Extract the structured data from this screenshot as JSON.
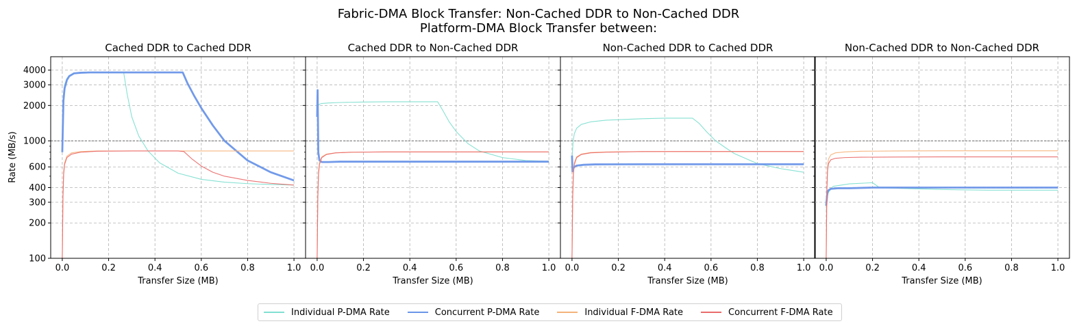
{
  "suptitle": {
    "line1": "Fabric-DMA Block Transfer: Non-Cached DDR to Non-Cached DDR",
    "line2": "Platform-DMA Block Transfer between:"
  },
  "legend": [
    {
      "label": "Individual P-DMA Rate",
      "color": "#7fdfd0"
    },
    {
      "label": "Concurrent P-DMA Rate",
      "color": "#6a95e8"
    },
    {
      "label": "Individual F-DMA Rate",
      "color": "#f5b27a"
    },
    {
      "label": "Concurrent F-DMA Rate",
      "color": "#ea6a6a"
    }
  ],
  "axes": {
    "xlabel": "Transfer Size (MB)",
    "ylabel": "Rate (MB/s)",
    "yscale": "log",
    "xlim": [
      -0.05,
      1.05
    ],
    "ylim": [
      100,
      5200
    ],
    "xticks": [
      0,
      0.2,
      0.4,
      0.6,
      0.8,
      1.0
    ],
    "xtick_labels": [
      "0.0",
      "0.2",
      "0.4",
      "0.6",
      "0.8",
      "1.0"
    ],
    "yticks": [
      100,
      200,
      300,
      400,
      600,
      1000,
      2000,
      3000,
      4000
    ],
    "ytick_labels": [
      "100",
      "200",
      "300",
      "400",
      "600",
      "1000",
      "2000",
      "3000",
      "4000"
    ],
    "reference_line": 1000,
    "grid": true
  },
  "chart_data": [
    {
      "type": "line",
      "title": "Cached DDR to Cached DDR",
      "series": [
        {
          "name": "Individual P-DMA Rate",
          "x": [
            0,
            0.005,
            0.01,
            0.02,
            0.03,
            0.05,
            0.08,
            0.12,
            0.2,
            0.265,
            0.28,
            0.3,
            0.33,
            0.37,
            0.42,
            0.5,
            0.6,
            0.7,
            0.8,
            0.9,
            1.0
          ],
          "y": [
            1300,
            2500,
            3000,
            3400,
            3600,
            3750,
            3800,
            3820,
            3820,
            3820,
            2500,
            1600,
            1100,
            820,
            650,
            530,
            470,
            445,
            432,
            425,
            420
          ]
        },
        {
          "name": "Concurrent P-DMA Rate",
          "x": [
            0,
            0.005,
            0.01,
            0.02,
            0.03,
            0.05,
            0.08,
            0.12,
            0.2,
            0.3,
            0.4,
            0.52,
            0.54,
            0.57,
            0.6,
            0.65,
            0.7,
            0.8,
            0.9,
            1.0
          ],
          "y": [
            800,
            2200,
            2800,
            3300,
            3550,
            3750,
            3800,
            3820,
            3820,
            3820,
            3820,
            3820,
            3100,
            2400,
            1900,
            1350,
            1000,
            680,
            540,
            460
          ]
        },
        {
          "name": "Individual F-DMA Rate",
          "x": [
            0,
            0.003,
            0.006,
            0.01,
            0.02,
            0.04,
            0.08,
            0.15,
            0.3,
            0.5,
            0.7,
            1.0
          ],
          "y": [
            100,
            350,
            550,
            650,
            740,
            790,
            810,
            820,
            820,
            820,
            820,
            820
          ]
        },
        {
          "name": "Concurrent F-DMA Rate",
          "x": [
            0,
            0.003,
            0.006,
            0.01,
            0.02,
            0.04,
            0.08,
            0.15,
            0.3,
            0.5,
            0.525,
            0.56,
            0.6,
            0.65,
            0.7,
            0.8,
            0.9,
            1.0
          ],
          "y": [
            100,
            330,
            520,
            630,
            720,
            770,
            800,
            815,
            820,
            820,
            810,
            700,
            610,
            540,
            500,
            460,
            435,
            420
          ]
        }
      ]
    },
    {
      "type": "line",
      "title": "Cached DDR to Non-Cached DDR",
      "series": [
        {
          "name": "Individual P-DMA Rate",
          "x": [
            0,
            0.005,
            0.01,
            0.02,
            0.05,
            0.1,
            0.2,
            0.3,
            0.4,
            0.52,
            0.54,
            0.57,
            0.6,
            0.65,
            0.7,
            0.8,
            0.9,
            1.0
          ],
          "y": [
            1800,
            2000,
            2050,
            2080,
            2100,
            2120,
            2140,
            2150,
            2150,
            2150,
            1850,
            1450,
            1200,
            950,
            820,
            720,
            680,
            670
          ]
        },
        {
          "name": "Concurrent P-DMA Rate",
          "x": [
            0,
            0.002,
            0.005,
            0.01,
            0.02,
            0.05,
            0.1,
            0.3,
            0.5,
            0.7,
            1.0
          ],
          "y": [
            1600,
            2700,
            800,
            680,
            660,
            660,
            665,
            665,
            665,
            665,
            665
          ]
        },
        {
          "name": "Individual F-DMA Rate",
          "x": [
            0,
            0.003,
            0.006,
            0.01,
            0.02,
            0.04,
            0.08,
            0.15,
            0.3,
            0.5,
            0.7,
            1.0
          ],
          "y": [
            100,
            350,
            550,
            650,
            730,
            770,
            790,
            800,
            805,
            805,
            805,
            805
          ]
        },
        {
          "name": "Concurrent F-DMA Rate",
          "x": [
            0,
            0.003,
            0.006,
            0.01,
            0.02,
            0.04,
            0.08,
            0.15,
            0.3,
            0.5,
            0.7,
            1.0
          ],
          "y": [
            100,
            330,
            520,
            630,
            720,
            765,
            790,
            800,
            805,
            805,
            805,
            805
          ]
        }
      ]
    },
    {
      "type": "line",
      "title": "Non-Cached DDR to Cached DDR",
      "series": [
        {
          "name": "Individual P-DMA Rate",
          "x": [
            0,
            0.005,
            0.01,
            0.02,
            0.04,
            0.08,
            0.15,
            0.3,
            0.4,
            0.52,
            0.55,
            0.58,
            0.62,
            0.66,
            0.7,
            0.8,
            0.9,
            1.0
          ],
          "y": [
            700,
            1000,
            1150,
            1280,
            1380,
            1450,
            1500,
            1540,
            1560,
            1560,
            1400,
            1200,
            1000,
            880,
            780,
            640,
            580,
            540
          ]
        },
        {
          "name": "Concurrent P-DMA Rate",
          "x": [
            0,
            0.002,
            0.005,
            0.01,
            0.02,
            0.05,
            0.1,
            0.3,
            0.5,
            0.7,
            1.0
          ],
          "y": [
            750,
            550,
            580,
            600,
            615,
            625,
            630,
            632,
            632,
            632,
            632
          ]
        },
        {
          "name": "Individual F-DMA Rate",
          "x": [
            0,
            0.003,
            0.006,
            0.01,
            0.02,
            0.04,
            0.08,
            0.15,
            0.3,
            0.5,
            0.7,
            1.0
          ],
          "y": [
            100,
            350,
            550,
            650,
            730,
            770,
            795,
            805,
            810,
            810,
            810,
            810
          ]
        },
        {
          "name": "Concurrent F-DMA Rate",
          "x": [
            0,
            0.003,
            0.006,
            0.01,
            0.02,
            0.04,
            0.08,
            0.15,
            0.3,
            0.5,
            0.7,
            1.0
          ],
          "y": [
            100,
            330,
            520,
            630,
            720,
            765,
            790,
            800,
            810,
            812,
            812,
            812
          ]
        }
      ]
    },
    {
      "type": "line",
      "title": "Non-Cached DDR to Non-Cached DDR",
      "series": [
        {
          "name": "Individual P-DMA Rate",
          "x": [
            0,
            0.005,
            0.01,
            0.03,
            0.1,
            0.2,
            0.23,
            0.3,
            0.4,
            0.5,
            0.7,
            1.0
          ],
          "y": [
            250,
            340,
            365,
            410,
            430,
            440,
            400,
            395,
            390,
            385,
            380,
            380
          ]
        },
        {
          "name": "Concurrent P-DMA Rate",
          "x": [
            0,
            0.005,
            0.01,
            0.02,
            0.05,
            0.1,
            0.2,
            0.3,
            0.4,
            0.5,
            0.7,
            0.85,
            0.9,
            1.0
          ],
          "y": [
            280,
            360,
            380,
            390,
            395,
            395,
            400,
            400,
            400,
            400,
            400,
            400,
            400,
            400
          ]
        },
        {
          "name": "Individual F-DMA Rate",
          "x": [
            0,
            0.003,
            0.006,
            0.01,
            0.02,
            0.04,
            0.08,
            0.15,
            0.3,
            0.5,
            0.7,
            1.0
          ],
          "y": [
            100,
            400,
            600,
            700,
            760,
            790,
            805,
            815,
            820,
            822,
            822,
            822
          ]
        },
        {
          "name": "Concurrent F-DMA Rate",
          "x": [
            0,
            0.003,
            0.006,
            0.01,
            0.02,
            0.04,
            0.08,
            0.15,
            0.3,
            0.5,
            0.7,
            1.0
          ],
          "y": [
            100,
            380,
            560,
            640,
            690,
            710,
            720,
            725,
            728,
            730,
            730,
            730
          ]
        }
      ]
    }
  ]
}
